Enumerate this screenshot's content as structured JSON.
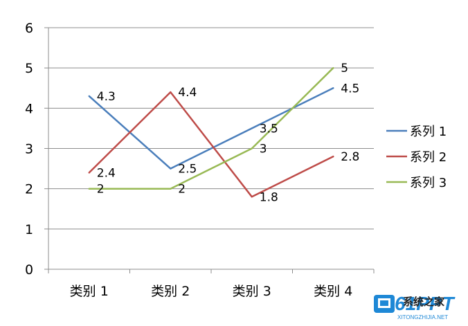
{
  "chart_data": {
    "type": "line",
    "categories": [
      "类别 1",
      "类别 2",
      "类别 3",
      "类别 4"
    ],
    "series": [
      {
        "name": "系列 1",
        "values": [
          4.3,
          2.5,
          3.5,
          4.5
        ],
        "color": "#4a7ebb"
      },
      {
        "name": "系列 2",
        "values": [
          2.4,
          4.4,
          1.8,
          2.8
        ],
        "color": "#be4b48"
      },
      {
        "name": "系列 3",
        "values": [
          2,
          2,
          3,
          5
        ],
        "color": "#98b954"
      }
    ],
    "ylim": [
      0,
      6
    ],
    "yticks": [
      0,
      1,
      2,
      3,
      4,
      5,
      6
    ],
    "grid": true,
    "legend": "right",
    "data_labels": true
  },
  "watermark": {
    "brand": "61PPT",
    "sub": "XITONGZHIJIA.NET",
    "cn": "系统之家"
  }
}
